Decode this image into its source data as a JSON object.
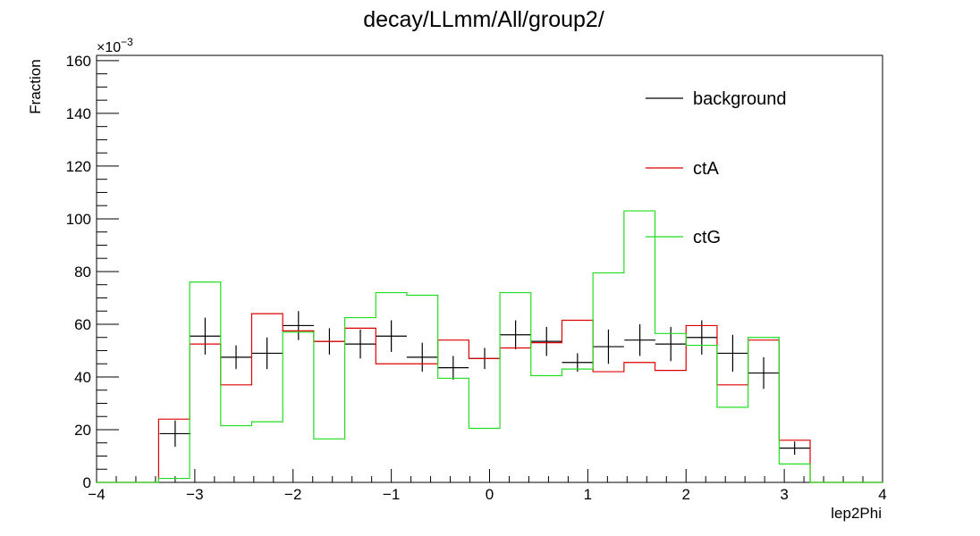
{
  "chart_data": {
    "type": "line",
    "title": "decay/LLmm/All/group2/",
    "xlabel": "lep2Phi",
    "ylabel": "Fraction",
    "y_multiplier": "×10",
    "y_multiplier_exp": "−3",
    "xlim": [
      -4,
      4
    ],
    "ylim": [
      0,
      162
    ],
    "x_ticks": [
      -4,
      -3,
      -2,
      -1,
      0,
      1,
      2,
      3,
      4
    ],
    "x_tick_labels": [
      "−4",
      "−3",
      "−2",
      "−1",
      "0",
      "1",
      "2",
      "3",
      "4"
    ],
    "y_ticks": [
      0,
      20,
      40,
      60,
      80,
      100,
      120,
      140,
      160
    ],
    "y_tick_labels": [
      "0",
      "20",
      "40",
      "60",
      "80",
      "100",
      "120",
      "140",
      "160"
    ],
    "bin_edges": [
      -4.0,
      -3.6842,
      -3.3684,
      -3.0526,
      -2.7368,
      -2.4211,
      -2.1053,
      -1.7895,
      -1.4737,
      -1.1579,
      -0.8421,
      -0.5263,
      -0.2105,
      0.1053,
      0.4211,
      0.7368,
      1.0526,
      1.3684,
      1.6842,
      2.0,
      2.3158,
      2.6316,
      2.9474,
      3.2632,
      3.5789,
      4.0
    ],
    "legend_position": "top-right",
    "series": [
      {
        "name": "background",
        "color": "#000000",
        "style": "points",
        "x": [
          -3.2,
          -2.895,
          -2.58,
          -2.265,
          -1.945,
          -1.63,
          -1.315,
          -1.0,
          -0.685,
          -0.37,
          -0.05,
          0.265,
          0.58,
          0.895,
          1.21,
          1.53,
          1.845,
          2.16,
          2.475,
          2.79,
          3.105
        ],
        "values": [
          18.5,
          55.5,
          47.5,
          49,
          59.5,
          53.5,
          52.5,
          55.5,
          47.5,
          43.5,
          47,
          56,
          53.5,
          45.5,
          51.5,
          54,
          52.5,
          55,
          49,
          41.5,
          13
        ],
        "errors": [
          5,
          7,
          4.5,
          6,
          5.5,
          5,
          5.5,
          6,
          5.5,
          4.5,
          4,
          5.5,
          5.5,
          3.5,
          6.5,
          6,
          6.5,
          6.5,
          7,
          6,
          2.5
        ]
      },
      {
        "name": "ctA",
        "color": "#dd0000",
        "style": "step",
        "values": [
          0,
          0,
          24,
          52.5,
          37,
          64,
          57.5,
          53.5,
          58.5,
          45,
          45,
          54,
          47,
          51,
          53,
          61.5,
          42,
          45.5,
          42.5,
          59.5,
          37,
          54,
          16,
          0,
          0
        ]
      },
      {
        "name": "ctG",
        "color": "#22dd22",
        "style": "step",
        "values": [
          0,
          0,
          1.5,
          76,
          21.5,
          23,
          57,
          16.5,
          62.5,
          72,
          71,
          39.5,
          20.5,
          72,
          40.5,
          43,
          79.5,
          103,
          56.5,
          52,
          28.5,
          55,
          7,
          0,
          0
        ]
      }
    ]
  }
}
